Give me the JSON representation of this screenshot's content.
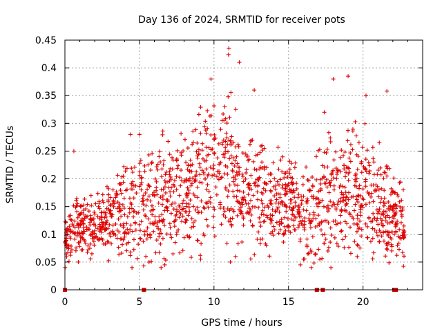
{
  "chart_data": {
    "type": "scatter",
    "title": "Day 136 of 2024, SRMTID for receiver pots",
    "xlabel": "GPS time / hours",
    "ylabel": "SRMTID / TECUs",
    "xlim": [
      0,
      24
    ],
    "ylim": [
      0,
      0.45
    ],
    "x_ticks": [
      "0",
      "5",
      "10",
      "15",
      "20"
    ],
    "x_tick_values": [
      0,
      5,
      10,
      15,
      20
    ],
    "y_ticks": [
      "0",
      "0.05",
      "0.1",
      "0.15",
      "0.2",
      "0.25",
      "0.3",
      "0.35",
      "0.4",
      "0.45"
    ],
    "y_tick_values": [
      0,
      0.05,
      0.1,
      0.15,
      0.2,
      0.25,
      0.3,
      0.35,
      0.4,
      0.45
    ],
    "grid": true,
    "marker": "+",
    "color": "#e00000",
    "zero_flags": [
      0.0,
      5.3,
      16.9,
      17.3,
      22.1,
      22.2
    ],
    "envelope": {
      "x": [
        0,
        1,
        2,
        3,
        4,
        5,
        6,
        7,
        8,
        9,
        10,
        11,
        12,
        13,
        14,
        15,
        16,
        17,
        18,
        19,
        20,
        21,
        22,
        22.8
      ],
      "mean": [
        0.09,
        0.12,
        0.11,
        0.12,
        0.14,
        0.15,
        0.15,
        0.16,
        0.17,
        0.2,
        0.21,
        0.22,
        0.18,
        0.17,
        0.16,
        0.16,
        0.14,
        0.15,
        0.17,
        0.19,
        0.17,
        0.15,
        0.13,
        0.11
      ],
      "spread": [
        0.03,
        0.04,
        0.04,
        0.05,
        0.06,
        0.07,
        0.07,
        0.07,
        0.08,
        0.09,
        0.1,
        0.11,
        0.07,
        0.07,
        0.06,
        0.06,
        0.06,
        0.07,
        0.08,
        0.09,
        0.08,
        0.07,
        0.06,
        0.04
      ]
    },
    "highlights": [
      {
        "x": 0.6,
        "y": 0.25
      },
      {
        "x": 4.4,
        "y": 0.28
      },
      {
        "x": 5.0,
        "y": 0.28
      },
      {
        "x": 9.8,
        "y": 0.38
      },
      {
        "x": 11.0,
        "y": 0.435
      },
      {
        "x": 11.7,
        "y": 0.41
      },
      {
        "x": 12.7,
        "y": 0.36
      },
      {
        "x": 18.0,
        "y": 0.38
      },
      {
        "x": 19.0,
        "y": 0.385
      },
      {
        "x": 21.6,
        "y": 0.358
      },
      {
        "x": 20.2,
        "y": 0.35
      },
      {
        "x": 17.4,
        "y": 0.32
      },
      {
        "x": 4.5,
        "y": 0.04
      },
      {
        "x": 6.7,
        "y": 0.045
      },
      {
        "x": 11.1,
        "y": 0.05
      },
      {
        "x": 15.8,
        "y": 0.045
      },
      {
        "x": 0.9,
        "y": 0.05
      }
    ]
  }
}
